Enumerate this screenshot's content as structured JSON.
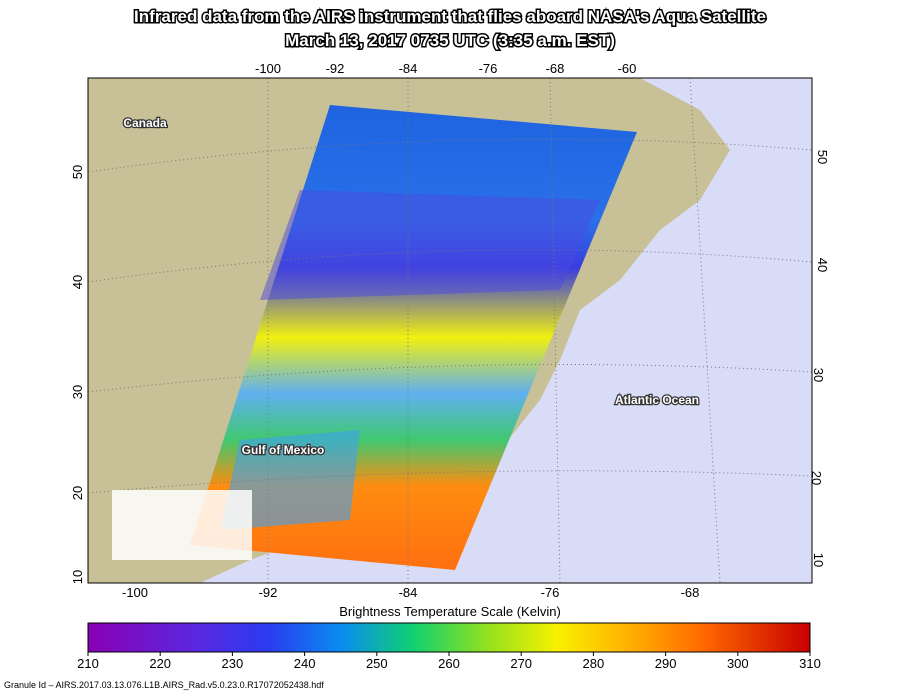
{
  "title": [
    "Infrared data from the AIRS instrument that flies aboard NASA's Aqua Satellite",
    "March 13, 2017 0735 UTC (3:35 a.m. EST)"
  ],
  "map": {
    "top_ticks": [
      -100,
      -92,
      -84,
      -76,
      -68,
      -60
    ],
    "bottom_ticks": [
      -100,
      -92,
      -84,
      -76,
      -68
    ],
    "left_ticks": [
      50,
      40,
      30,
      20,
      10
    ],
    "right_ticks": [
      50,
      40,
      30,
      20,
      10
    ],
    "places": [
      "Canada",
      "Atlantic Ocean",
      "Gulf of Mexico"
    ]
  },
  "colorbar": {
    "title": "Brightness Temperature Scale (Kelvin)",
    "range": [
      210,
      310
    ],
    "ticks": [
      210,
      220,
      230,
      240,
      250,
      260,
      270,
      280,
      290,
      300,
      310
    ]
  },
  "footer": "Granule Id – AIRS.2017.03.13.076.L1B.AIRS_Rad.v5.0.23.0.R17072052438.hdf"
}
